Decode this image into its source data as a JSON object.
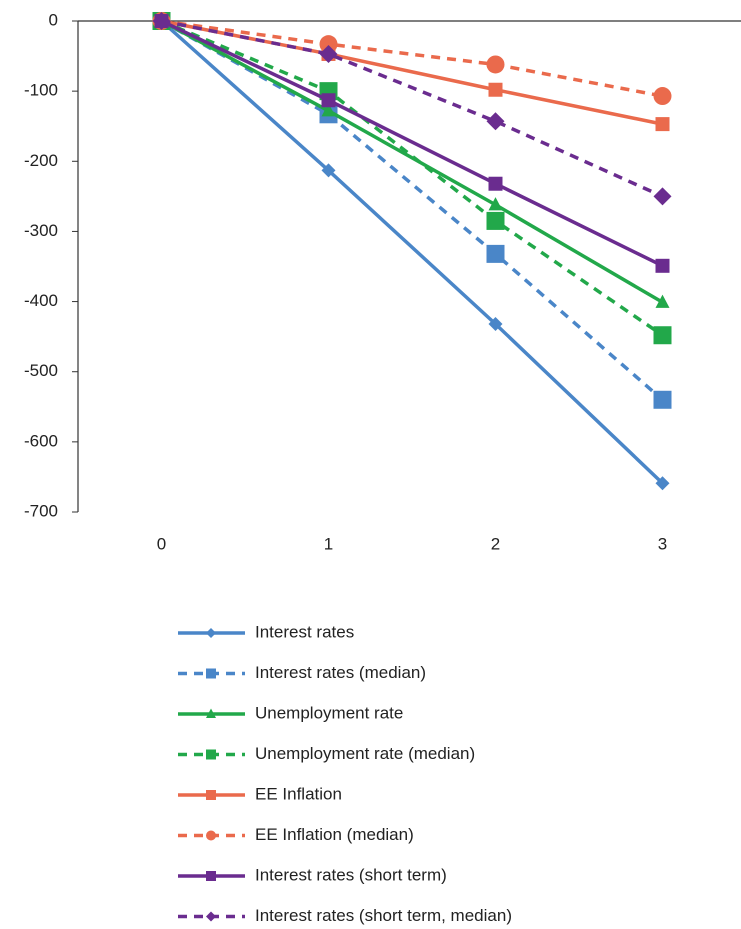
{
  "chart_data": {
    "type": "line",
    "categories": [
      "0",
      "1",
      "2",
      "3"
    ],
    "ylim": [
      -700,
      0
    ],
    "yticks": [
      0,
      -100,
      -200,
      -300,
      -400,
      -500,
      -600,
      -700
    ],
    "series": [
      {
        "name": "Interest rates",
        "color": "#4a86c8",
        "linestyle": "solid",
        "marker": "diamond",
        "values": [
          0,
          -213,
          -432,
          -659
        ]
      },
      {
        "name": "Interest rates (median)",
        "color": "#4a86c8",
        "linestyle": "dashed",
        "marker": "square",
        "values": [
          0,
          -133,
          -332,
          -540
        ]
      },
      {
        "name": "Unemployment rate",
        "color": "#22a84a",
        "linestyle": "solid",
        "marker": "triangle",
        "values": [
          0,
          -128,
          -262,
          -401
        ]
      },
      {
        "name": "Unemployment rate (median)",
        "color": "#22a84a",
        "linestyle": "dashed",
        "marker": "square",
        "values": [
          0,
          -100,
          -285,
          -448
        ]
      },
      {
        "name": "EE Inflation",
        "color": "#ea6a4c",
        "linestyle": "solid",
        "marker": "square",
        "values": [
          0,
          -47,
          -98,
          -147
        ]
      },
      {
        "name": "EE Inflation (median)",
        "color": "#ea6a4c",
        "linestyle": "dashed",
        "marker": "circle",
        "values": [
          0,
          -33,
          -62,
          -107
        ]
      },
      {
        "name": "Interest rates (short term)",
        "color": "#6a2c8f",
        "linestyle": "solid",
        "marker": "square",
        "values": [
          0,
          -113,
          -232,
          -349
        ]
      },
      {
        "name": "Interest rates (short term, median)",
        "color": "#6a2c8f",
        "linestyle": "dashed",
        "marker": "diamond",
        "values": [
          0,
          -47,
          -143,
          -250
        ]
      }
    ]
  }
}
